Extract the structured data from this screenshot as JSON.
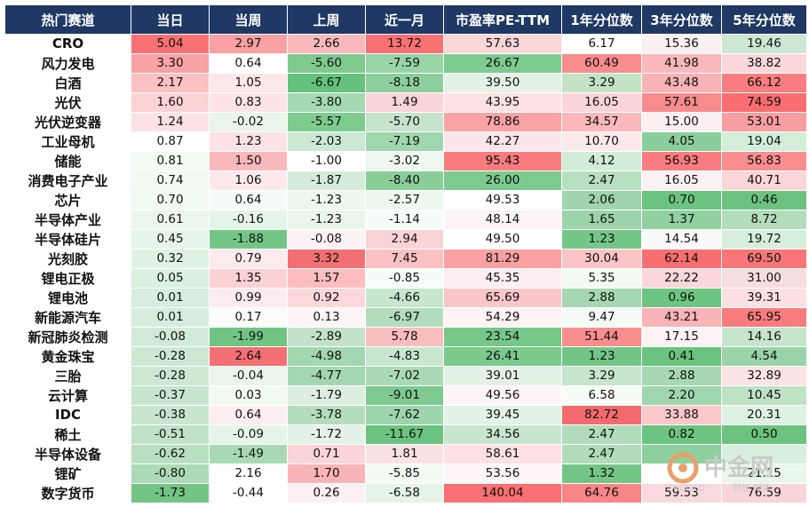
{
  "table": {
    "headers": [
      "热门赛道",
      "当日",
      "当周",
      "上周",
      "近一月",
      "市盈率PE-TTM",
      "1年分位数",
      "3年分位数",
      "5年分位数"
    ],
    "rows": [
      {
        "name": "CRO",
        "values": [
          "5.04",
          "2.97",
          "2.66",
          "13.72",
          "57.63",
          "6.17",
          "15.36",
          "19.46"
        ],
        "colors": [
          "#f87172",
          "#f8a0a2",
          "#f9b9bc",
          "#f87173",
          "#fad6d9",
          "#ffffff",
          "#f8f0f3",
          "#cde7d3"
        ]
      },
      {
        "name": "风力发电",
        "values": [
          "3.30",
          "0.64",
          "-5.60",
          "-7.59",
          "26.67",
          "60.49",
          "41.98",
          "38.82"
        ],
        "colors": [
          "#f9a2a4",
          "#ffffff",
          "#7fca8f",
          "#99d4a6",
          "#7ecb8f",
          "#f88b8d",
          "#fbb8bb",
          "#fad7da"
        ]
      },
      {
        "name": "白酒",
        "values": [
          "2.17",
          "1.05",
          "-6.67",
          "-8.18",
          "39.50",
          "3.29",
          "43.48",
          "66.12"
        ],
        "colors": [
          "#fbc0c2",
          "#fce7ea",
          "#65c17b",
          "#8dcf9c",
          "#e4f2e6",
          "#c3e3c9",
          "#f8b3b6",
          "#f87d80"
        ]
      },
      {
        "name": "光伏",
        "values": [
          "1.60",
          "0.83",
          "-3.80",
          "1.49",
          "43.95",
          "16.05",
          "57.61",
          "74.59"
        ],
        "colors": [
          "#fcd2d5",
          "#fde3e6",
          "#a4d9b1",
          "#fad4d7",
          "#fde2e5",
          "#fad5d8",
          "#f88b8d",
          "#f86d70"
        ]
      },
      {
        "name": "光伏逆变器",
        "values": [
          "1.24",
          "-0.02",
          "-5.57",
          "-5.70",
          "78.86",
          "34.57",
          "15.00",
          "53.01"
        ],
        "colors": [
          "#fde2e5",
          "#e9f4ea",
          "#7ecb8f",
          "#c5e4cb",
          "#f9a3a6",
          "#fbb8bb",
          "#fbeff2",
          "#f89ea0"
        ]
      },
      {
        "name": "工业母机",
        "values": [
          "0.87",
          "1.23",
          "-2.03",
          "-7.19",
          "42.27",
          "10.70",
          "4.05",
          "19.04"
        ],
        "colors": [
          "#ffffff",
          "#fce2e5",
          "#cce8d3",
          "#a0d6ad",
          "#fde6e9",
          "#fbe9ec",
          "#8acf9b",
          "#d2eed8"
        ]
      },
      {
        "name": "储能",
        "values": [
          "0.81",
          "1.50",
          "-1.00",
          "-3.02",
          "95.43",
          "4.12",
          "56.93",
          "56.83"
        ],
        "colors": [
          "#f5fbf5",
          "#f9b8bb",
          "#ffffff",
          "#eef8f0",
          "#f87c7e",
          "#d1ecd8",
          "#f87c7f",
          "#f88e90"
        ]
      },
      {
        "name": "消费电子产业",
        "values": [
          "0.74",
          "1.06",
          "-1.87",
          "-8.40",
          "26.00",
          "2.47",
          "16.05",
          "40.71"
        ],
        "colors": [
          "#f2faf3",
          "#fde8eb",
          "#d5ebda",
          "#8ace9a",
          "#7dca8e",
          "#b9dfc2",
          "#fbf1f4",
          "#fbd6d9"
        ]
      },
      {
        "name": "芯片",
        "values": [
          "0.70",
          "0.64",
          "-1.23",
          "-2.57",
          "49.53",
          "2.06",
          "0.70",
          "0.46"
        ],
        "colors": [
          "#f0f9f2",
          "#f5fbf6",
          "#ecf7ee",
          "#ecf7ee",
          "#ffffff",
          "#9fd4ac",
          "#6cc37f",
          "#6cc37f"
        ]
      },
      {
        "name": "半导体产业",
        "values": [
          "0.61",
          "-0.16",
          "-1.23",
          "-1.14",
          "48.14",
          "1.65",
          "1.37",
          "8.72"
        ],
        "colors": [
          "#ebf6ed",
          "#e5f4e8",
          "#e9f5eb",
          "#f8fcf9",
          "#fdf4f6",
          "#9dd3aa",
          "#91d0a1",
          "#b2dcbc"
        ]
      },
      {
        "name": "半导体硅片",
        "values": [
          "0.45",
          "-1.88",
          "-0.08",
          "2.94",
          "49.50",
          "1.23",
          "14.54",
          "19.72"
        ],
        "colors": [
          "#e6f4e9",
          "#74c687",
          "#fcf1f3",
          "#fad3d6",
          "#ffffff",
          "#75c788",
          "#f8fbf9",
          "#d6efdc"
        ]
      },
      {
        "name": "光刻胶",
        "values": [
          "0.32",
          "0.79",
          "3.32",
          "7.45",
          "81.29",
          "30.04",
          "62.14",
          "69.50"
        ],
        "colors": [
          "#dff1e3",
          "#fdeaed",
          "#f26f72",
          "#fac0c3",
          "#f9a1a3",
          "#fbc5c8",
          "#f86e71",
          "#f87678"
        ]
      },
      {
        "name": "锂电正极",
        "values": [
          "0.05",
          "1.35",
          "1.57",
          "-0.85",
          "45.35",
          "5.35",
          "22.22",
          "31.00"
        ],
        "colors": [
          "#dcf0e0",
          "#fbd1d4",
          "#fbbdc0",
          "#f8fcf9",
          "#fdeef1",
          "#f3faf4",
          "#fad7da",
          "#f6dde1"
        ]
      },
      {
        "name": "锂电池",
        "values": [
          "0.01",
          "0.99",
          "0.92",
          "-4.66",
          "65.69",
          "2.88",
          "0.96",
          "39.31"
        ],
        "colors": [
          "#d6ede0",
          "#fdecef",
          "#fcd8db",
          "#c7e6ce",
          "#fbc6c9",
          "#a5d7b2",
          "#6dc581",
          "#fce0e3"
        ]
      },
      {
        "name": "新能源汽车",
        "values": [
          "0.01",
          "0.17",
          "0.13",
          "-6.97",
          "54.29",
          "9.47",
          "43.21",
          "65.95"
        ],
        "colors": [
          "#d6eddd",
          "#f9fcf9",
          "#fdf5f7",
          "#b2ddbe",
          "#fdf2f4",
          "#f5fbf6",
          "#f8b4b7",
          "#f87c7e"
        ]
      },
      {
        "name": "新冠肺炎检测",
        "values": [
          "-0.08",
          "-1.99",
          "-2.89",
          "5.78",
          "23.54",
          "51.44",
          "17.15",
          "14.16"
        ],
        "colors": [
          "#d2ebd8",
          "#70c584",
          "#c2e3c9",
          "#f9bcbf",
          "#76c789",
          "#f88d8f",
          "#fbf3f5",
          "#c5e6cd"
        ]
      },
      {
        "name": "黄金珠宝",
        "values": [
          "-0.28",
          "2.64",
          "-4.98",
          "-4.83",
          "26.41",
          "1.23",
          "0.41",
          "4.54"
        ],
        "colors": [
          "#cce8d3",
          "#f27073",
          "#a3d7b0",
          "#c9e7d0",
          "#7bc98c",
          "#73c587",
          "#6bc37f",
          "#9ad3a7"
        ]
      },
      {
        "name": "三胎",
        "values": [
          "-0.28",
          "-0.04",
          "-4.77",
          "-7.02",
          "39.01",
          "3.29",
          "2.88",
          "32.89"
        ],
        "colors": [
          "#cce8d3",
          "#eaf6ec",
          "#a3d7b0",
          "#aadab5",
          "#e4f2e6",
          "#c6e6cd",
          "#a7d8b3",
          "#fbe3e6"
        ]
      },
      {
        "name": "云计算",
        "values": [
          "-0.37",
          "0.03",
          "-1.79",
          "-9.01",
          "49.56",
          "6.58",
          "2.20",
          "10.45"
        ],
        "colors": [
          "#c8e6cf",
          "#f0f9f2",
          "#ddeee1",
          "#7ec98f",
          "#fdf5f7",
          "#f7fcf8",
          "#a0d6ad",
          "#bfe2c6"
        ]
      },
      {
        "name": "IDC",
        "values": [
          "-0.38",
          "0.64",
          "-3.78",
          "-7.62",
          "39.45",
          "82.72",
          "33.88",
          "20.31"
        ],
        "colors": [
          "#c8e6cf",
          "#fcedf0",
          "#b4ddbe",
          "#9fd5ac",
          "#e3f2e6",
          "#f26a6d",
          "#fbc8cb",
          "#def2e3"
        ]
      },
      {
        "name": "稀土",
        "values": [
          "-0.51",
          "-0.09",
          "-1.72",
          "-11.67",
          "34.56",
          "2.47",
          "0.82",
          "0.50"
        ],
        "colors": [
          "#c0e2c8",
          "#e6f5e9",
          "#e5f2e7",
          "#6bc37f",
          "#c8e6cf",
          "#b1dcbb",
          "#6cc480",
          "#6cc37f"
        ]
      },
      {
        "name": "半导体设备",
        "values": [
          "-0.62",
          "-1.49",
          "0.71",
          "1.81",
          "58.61",
          "2.47",
          "",
          ""
        ],
        "colors": [
          "#b9dfc2",
          "#a8d9b4",
          "#fbd4d7",
          "#f9e2e5",
          "#fde1e4",
          "#b1dcbb",
          "#8dcf9d",
          "#d7efdd"
        ]
      },
      {
        "name": "锂矿",
        "values": [
          "-0.80",
          "2.16",
          "1.70",
          "-5.85",
          "53.56",
          "1.32",
          "",
          "21.15"
        ],
        "colors": [
          "#acdab7",
          "#ffffff",
          "#f9b4b7",
          "#f4fbf5",
          "#fef6f8",
          "#74c687",
          "#ffffff",
          "#e8f6eb"
        ]
      },
      {
        "name": "数字货币",
        "values": [
          "-1.73",
          "-0.44",
          "0.26",
          "-6.58",
          "140.04",
          "64.76",
          "59.53",
          "76.59"
        ],
        "colors": [
          "#72c585",
          "#ffffff",
          "#fcf0f3",
          "#e5f4e8",
          "#f87073",
          "#f88587",
          "#f8dade",
          "#f8d5d8"
        ]
      }
    ]
  },
  "watermark": {
    "brand": "中金网",
    "sub": "CNGOLD",
    "tag": "财经 媒体",
    "colors": {
      "ring": "#e8a06a",
      "text": "#c9c9c9"
    }
  }
}
